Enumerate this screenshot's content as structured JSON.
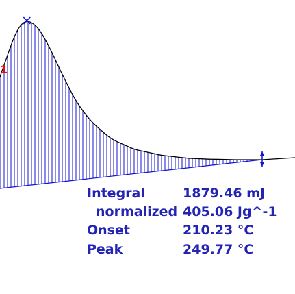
{
  "colors": {
    "hatch": "#1414d2",
    "curve": "#000000",
    "text": "#2323b4",
    "edge_mark": "#e01010"
  },
  "edge_mark": "1",
  "results": {
    "integral_label": "Integral",
    "integral_value": "1879.46 mJ",
    "normalized_label": "normalized",
    "normalized_value": "405.06 Jg^-1",
    "onset_label": "Onset",
    "onset_value": "210.23 °C",
    "peak_label": "Peak",
    "peak_value": "249.77 °C"
  },
  "chart_data": {
    "type": "area",
    "title": "",
    "xlabel": "",
    "ylabel": "",
    "peak_marker": "x",
    "integration_limit_marker": "double-arrow",
    "hatched_area": true,
    "baseline": "sloped",
    "series": [
      {
        "values": [
          0.62,
          0.75,
          0.88,
          0.97,
          1.0,
          0.98,
          0.93,
          0.85,
          0.76,
          0.66,
          0.57,
          0.48,
          0.41,
          0.35,
          0.3,
          0.26,
          0.22,
          0.19,
          0.17,
          0.15,
          0.13,
          0.12,
          0.11,
          0.1,
          0.09,
          0.085,
          0.08,
          0.075,
          0.07,
          0.068,
          0.066,
          0.064,
          0.063,
          0.062,
          0.061,
          0.06,
          0.06,
          0.06,
          0.06,
          0.06
        ]
      }
    ]
  }
}
